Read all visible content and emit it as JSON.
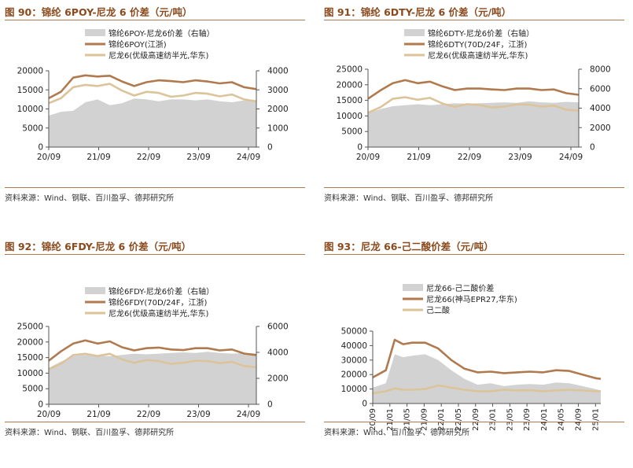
{
  "panels": [
    {
      "title": "图 90：锦纶 6POY-尼龙 6 价差（元/吨）",
      "source": "资料来源：Wind、钢联、百川盈孚、德邦研究所"
    },
    {
      "title": "图 91：锦纶 6DTY-尼龙 6 价差（元/吨）",
      "source": "资料来源：Wind、钢联、百川盈孚、德邦研究所"
    },
    {
      "title": "图 92：锦纶 6FDY-尼龙 6 价差（元/吨）",
      "source": "资料来源：Wind、钢联、百川盈孚、德邦研究所"
    },
    {
      "title": "图 93：尼龙 66-己二酸价差（元/吨）",
      "source": "资料来源：Wind、百川盈孚、德邦研究所"
    }
  ],
  "colors": {
    "spread": "#d2d2d2",
    "yarn": "#b07a4e",
    "chip": "#dcc49a"
  },
  "chart_data": [
    {
      "type": "line",
      "title": "锦纶6POY-尼龙6价差",
      "legend": [
        "锦纶6POY-尼龙6价差（右轴）",
        "锦纶6POY(江浙)",
        "尼龙6(优级高速纺半光,华东)"
      ],
      "x_ticks": [
        "20/09",
        "21/09",
        "22/09",
        "23/09",
        "24/09"
      ],
      "x": [
        2020.75,
        2021.0,
        2021.25,
        2021.5,
        2021.75,
        2022.0,
        2022.25,
        2022.5,
        2022.75,
        2023.0,
        2023.25,
        2023.5,
        2023.75,
        2024.0,
        2024.25,
        2024.5,
        2024.75,
        2025.0
      ],
      "xlim": [
        2020.75,
        2025.0
      ],
      "ylim_left": [
        0,
        20000
      ],
      "yticks_left": [
        0,
        5000,
        10000,
        15000,
        20000
      ],
      "ylim_right": [
        0,
        4000
      ],
      "yticks_right": [
        0,
        1000,
        2000,
        3000,
        4000
      ],
      "series": [
        {
          "name": "锦纶6POY-尼龙6价差（右轴）",
          "kind": "area",
          "axis": "right",
          "values": [
            1650,
            1850,
            1900,
            2350,
            2500,
            2200,
            2300,
            2550,
            2500,
            2400,
            2500,
            2500,
            2450,
            2500,
            2400,
            2350,
            2450,
            2400
          ]
        },
        {
          "name": "锦纶6POY(江浙)",
          "kind": "line",
          "axis": "left",
          "values": [
            12800,
            14500,
            18200,
            18800,
            18500,
            18700,
            17200,
            16000,
            17000,
            17500,
            17300,
            17000,
            17500,
            17200,
            16700,
            17000,
            15700,
            15200
          ]
        },
        {
          "name": "尼龙6(优级高速纺半光,华东)",
          "kind": "line",
          "axis": "left",
          "values": [
            11500,
            12800,
            15700,
            16300,
            16000,
            16600,
            14800,
            13500,
            14500,
            14200,
            13200,
            13500,
            14200,
            14000,
            13300,
            13800,
            12500,
            12000
          ]
        }
      ]
    },
    {
      "type": "line",
      "title": "锦纶6DTY-尼龙6价差",
      "legend": [
        "锦纶6DTY-尼龙6价差（右轴）",
        "锦纶6DTY(70D/24F，江浙)",
        "尼龙6(优级高速纺半光,华东)"
      ],
      "x_ticks": [
        "20/09",
        "21/09",
        "22/09",
        "23/09",
        "24/09"
      ],
      "x": [
        2020.75,
        2021.0,
        2021.25,
        2021.5,
        2021.75,
        2022.0,
        2022.25,
        2022.5,
        2022.75,
        2023.0,
        2023.25,
        2023.5,
        2023.75,
        2024.0,
        2024.25,
        2024.5,
        2024.75,
        2025.0
      ],
      "xlim": [
        2020.75,
        2025.0
      ],
      "ylim_left": [
        0,
        25000
      ],
      "yticks_left": [
        0,
        5000,
        10000,
        15000,
        20000,
        25000
      ],
      "ylim_right": [
        0,
        8000
      ],
      "yticks_right": [
        0,
        2000,
        4000,
        6000,
        8000
      ],
      "series": [
        {
          "name": "锦纶6DTY-尼龙6价差（右轴）",
          "kind": "area",
          "axis": "right",
          "values": [
            3500,
            3900,
            4200,
            4300,
            4400,
            4300,
            4400,
            4500,
            4450,
            4500,
            4550,
            4600,
            4550,
            4700,
            4600,
            4550,
            4650,
            4600
          ]
        },
        {
          "name": "锦纶6DTY(70D/24F，江浙)",
          "kind": "line",
          "axis": "left",
          "values": [
            15500,
            18200,
            20500,
            21500,
            20500,
            21000,
            19500,
            18300,
            18800,
            18800,
            18500,
            18300,
            18800,
            18800,
            18300,
            18500,
            17300,
            16800
          ]
        },
        {
          "name": "尼龙6(优级高速纺半光,华东)",
          "kind": "line",
          "axis": "left",
          "values": [
            11000,
            12800,
            15500,
            16000,
            15200,
            15800,
            14000,
            12900,
            13800,
            13500,
            12700,
            13000,
            13700,
            13600,
            13000,
            13300,
            12000,
            11700
          ]
        }
      ]
    },
    {
      "type": "line",
      "title": "锦纶6FDY-尼龙6价差",
      "legend": [
        "锦纶6FDY-尼龙6价差（右轴）",
        "锦纶6FDY(70D/24F，江浙)",
        "尼龙6(优级高速纺半光,华东)"
      ],
      "x_ticks": [
        "20/09",
        "21/09",
        "22/09",
        "23/09",
        "24/09"
      ],
      "x": [
        2020.75,
        2021.0,
        2021.25,
        2021.5,
        2021.75,
        2022.0,
        2022.25,
        2022.5,
        2022.75,
        2023.0,
        2023.25,
        2023.5,
        2023.75,
        2024.0,
        2024.25,
        2024.5,
        2024.75,
        2025.0
      ],
      "xlim": [
        2020.75,
        2025.0
      ],
      "ylim_left": [
        0,
        25000
      ],
      "yticks_left": [
        0,
        5000,
        10000,
        15000,
        20000,
        25000
      ],
      "ylim_right": [
        0,
        6000
      ],
      "yticks_right": [
        0,
        2000,
        4000,
        6000
      ],
      "series": [
        {
          "name": "锦纶6FDY-尼龙6价差（右轴）",
          "kind": "area",
          "axis": "right",
          "values": [
            2800,
            3300,
            3700,
            3800,
            3750,
            3700,
            3800,
            3900,
            3850,
            3900,
            3950,
            4000,
            3950,
            4050,
            3950,
            3900,
            3950,
            3900
          ]
        },
        {
          "name": "锦纶6FDY(70D/24F，江浙)",
          "kind": "line",
          "axis": "left",
          "values": [
            14000,
            17000,
            19500,
            20500,
            19500,
            20200,
            18300,
            17300,
            18000,
            18200,
            17600,
            17400,
            18000,
            18000,
            17300,
            17600,
            16300,
            15800
          ]
        },
        {
          "name": "尼龙6(优级高速纺半光,华东)",
          "kind": "line",
          "axis": "left",
          "values": [
            11200,
            13000,
            15800,
            16200,
            15500,
            16200,
            14400,
            13300,
            14200,
            13900,
            13000,
            13300,
            14000,
            13900,
            13200,
            13600,
            12300,
            11900
          ]
        }
      ]
    },
    {
      "type": "line",
      "title": "尼龙66-己二酸价差",
      "legend": [
        "尼龙66-己二酸价差",
        "尼龙66(神马EPR27,华东)",
        "己二酸"
      ],
      "x_ticks": [
        "20/09",
        "21/01",
        "21/05",
        "21/09",
        "22/01",
        "22/05",
        "22/09",
        "23/01",
        "23/05",
        "23/09",
        "24/01",
        "24/05",
        "24/09",
        "25/01"
      ],
      "x": [
        2020.75,
        2021.0,
        2021.17,
        2021.33,
        2021.5,
        2021.75,
        2022.0,
        2022.25,
        2022.5,
        2022.75,
        2023.0,
        2023.25,
        2023.5,
        2023.75,
        2024.0,
        2024.25,
        2024.5,
        2024.75,
        2025.0,
        2025.1
      ],
      "xlim": [
        2020.75,
        2025.1
      ],
      "ylim_left": [
        0,
        50000
      ],
      "yticks_left": [
        0,
        10000,
        20000,
        30000,
        40000,
        50000
      ],
      "series": [
        {
          "name": "尼龙66-己二酸价差",
          "kind": "area",
          "axis": "left",
          "values": [
            11000,
            14000,
            34000,
            32000,
            33000,
            34000,
            30000,
            23000,
            17000,
            13000,
            14000,
            12000,
            13000,
            13500,
            13000,
            14500,
            14000,
            12000,
            10000,
            9000
          ]
        },
        {
          "name": "尼龙66(神马EPR27,华东)",
          "kind": "line",
          "axis": "left",
          "values": [
            18000,
            23000,
            44000,
            41000,
            42000,
            42000,
            38000,
            30000,
            24000,
            21500,
            22000,
            21000,
            21500,
            22000,
            21500,
            23000,
            22500,
            20000,
            17500,
            17000
          ]
        },
        {
          "name": "己二酸",
          "kind": "line",
          "axis": "left",
          "values": [
            7000,
            8500,
            10500,
            9500,
            9500,
            10000,
            12500,
            11000,
            9500,
            8500,
            8500,
            9500,
            9000,
            9200,
            8500,
            9000,
            9500,
            9000,
            8500,
            8500
          ]
        }
      ]
    }
  ]
}
